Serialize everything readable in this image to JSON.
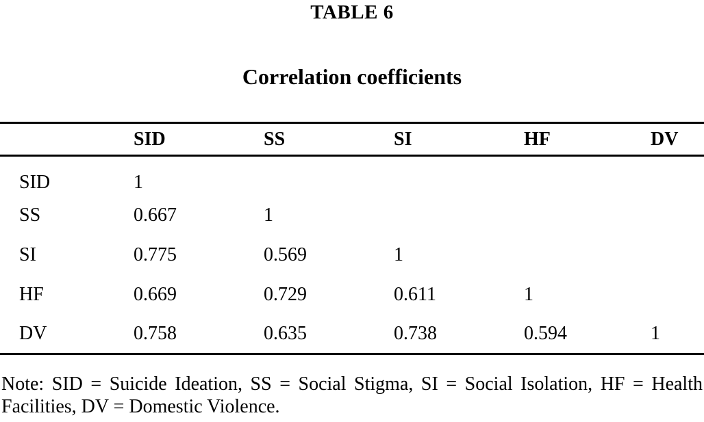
{
  "page": {
    "table_label": "TABLE 6",
    "title": "Correlation coefficients",
    "note": "Note: SID = Suicide Ideation, SS = Social Stigma, SI = Social Isolation, HF = Health Facilities, DV = Domestic Violence."
  },
  "table": {
    "columns": [
      "",
      "SID",
      "SS",
      "SI",
      "HF",
      "DV"
    ],
    "rows": [
      {
        "label": "SID",
        "values": [
          "1",
          "",
          "",
          "",
          ""
        ]
      },
      {
        "label": "SS",
        "values": [
          "0.667",
          "1",
          "",
          "",
          ""
        ]
      },
      {
        "label": "SI",
        "values": [
          "0.775",
          "0.569",
          "1",
          "",
          ""
        ]
      },
      {
        "label": "HF",
        "values": [
          "0.669",
          "0.729",
          "0.611",
          "1",
          ""
        ]
      },
      {
        "label": "DV",
        "values": [
          "0.758",
          "0.635",
          "0.738",
          "0.594",
          "1"
        ]
      }
    ]
  },
  "chart_data": {
    "type": "table",
    "title": "Correlation coefficients",
    "table_number": "TABLE 6",
    "variables": [
      "SID",
      "SS",
      "SI",
      "HF",
      "DV"
    ],
    "matrix": [
      [
        1,
        null,
        null,
        null,
        null
      ],
      [
        0.667,
        1,
        null,
        null,
        null
      ],
      [
        0.775,
        0.569,
        1,
        null,
        null
      ],
      [
        0.669,
        0.729,
        0.611,
        1,
        null
      ],
      [
        0.758,
        0.635,
        0.738,
        0.594,
        1
      ]
    ],
    "note": "Note: SID = Suicide Ideation, SS = Social Stigma, SI = Social Isolation, HF = Health Facilities, DV = Domestic Violence."
  }
}
